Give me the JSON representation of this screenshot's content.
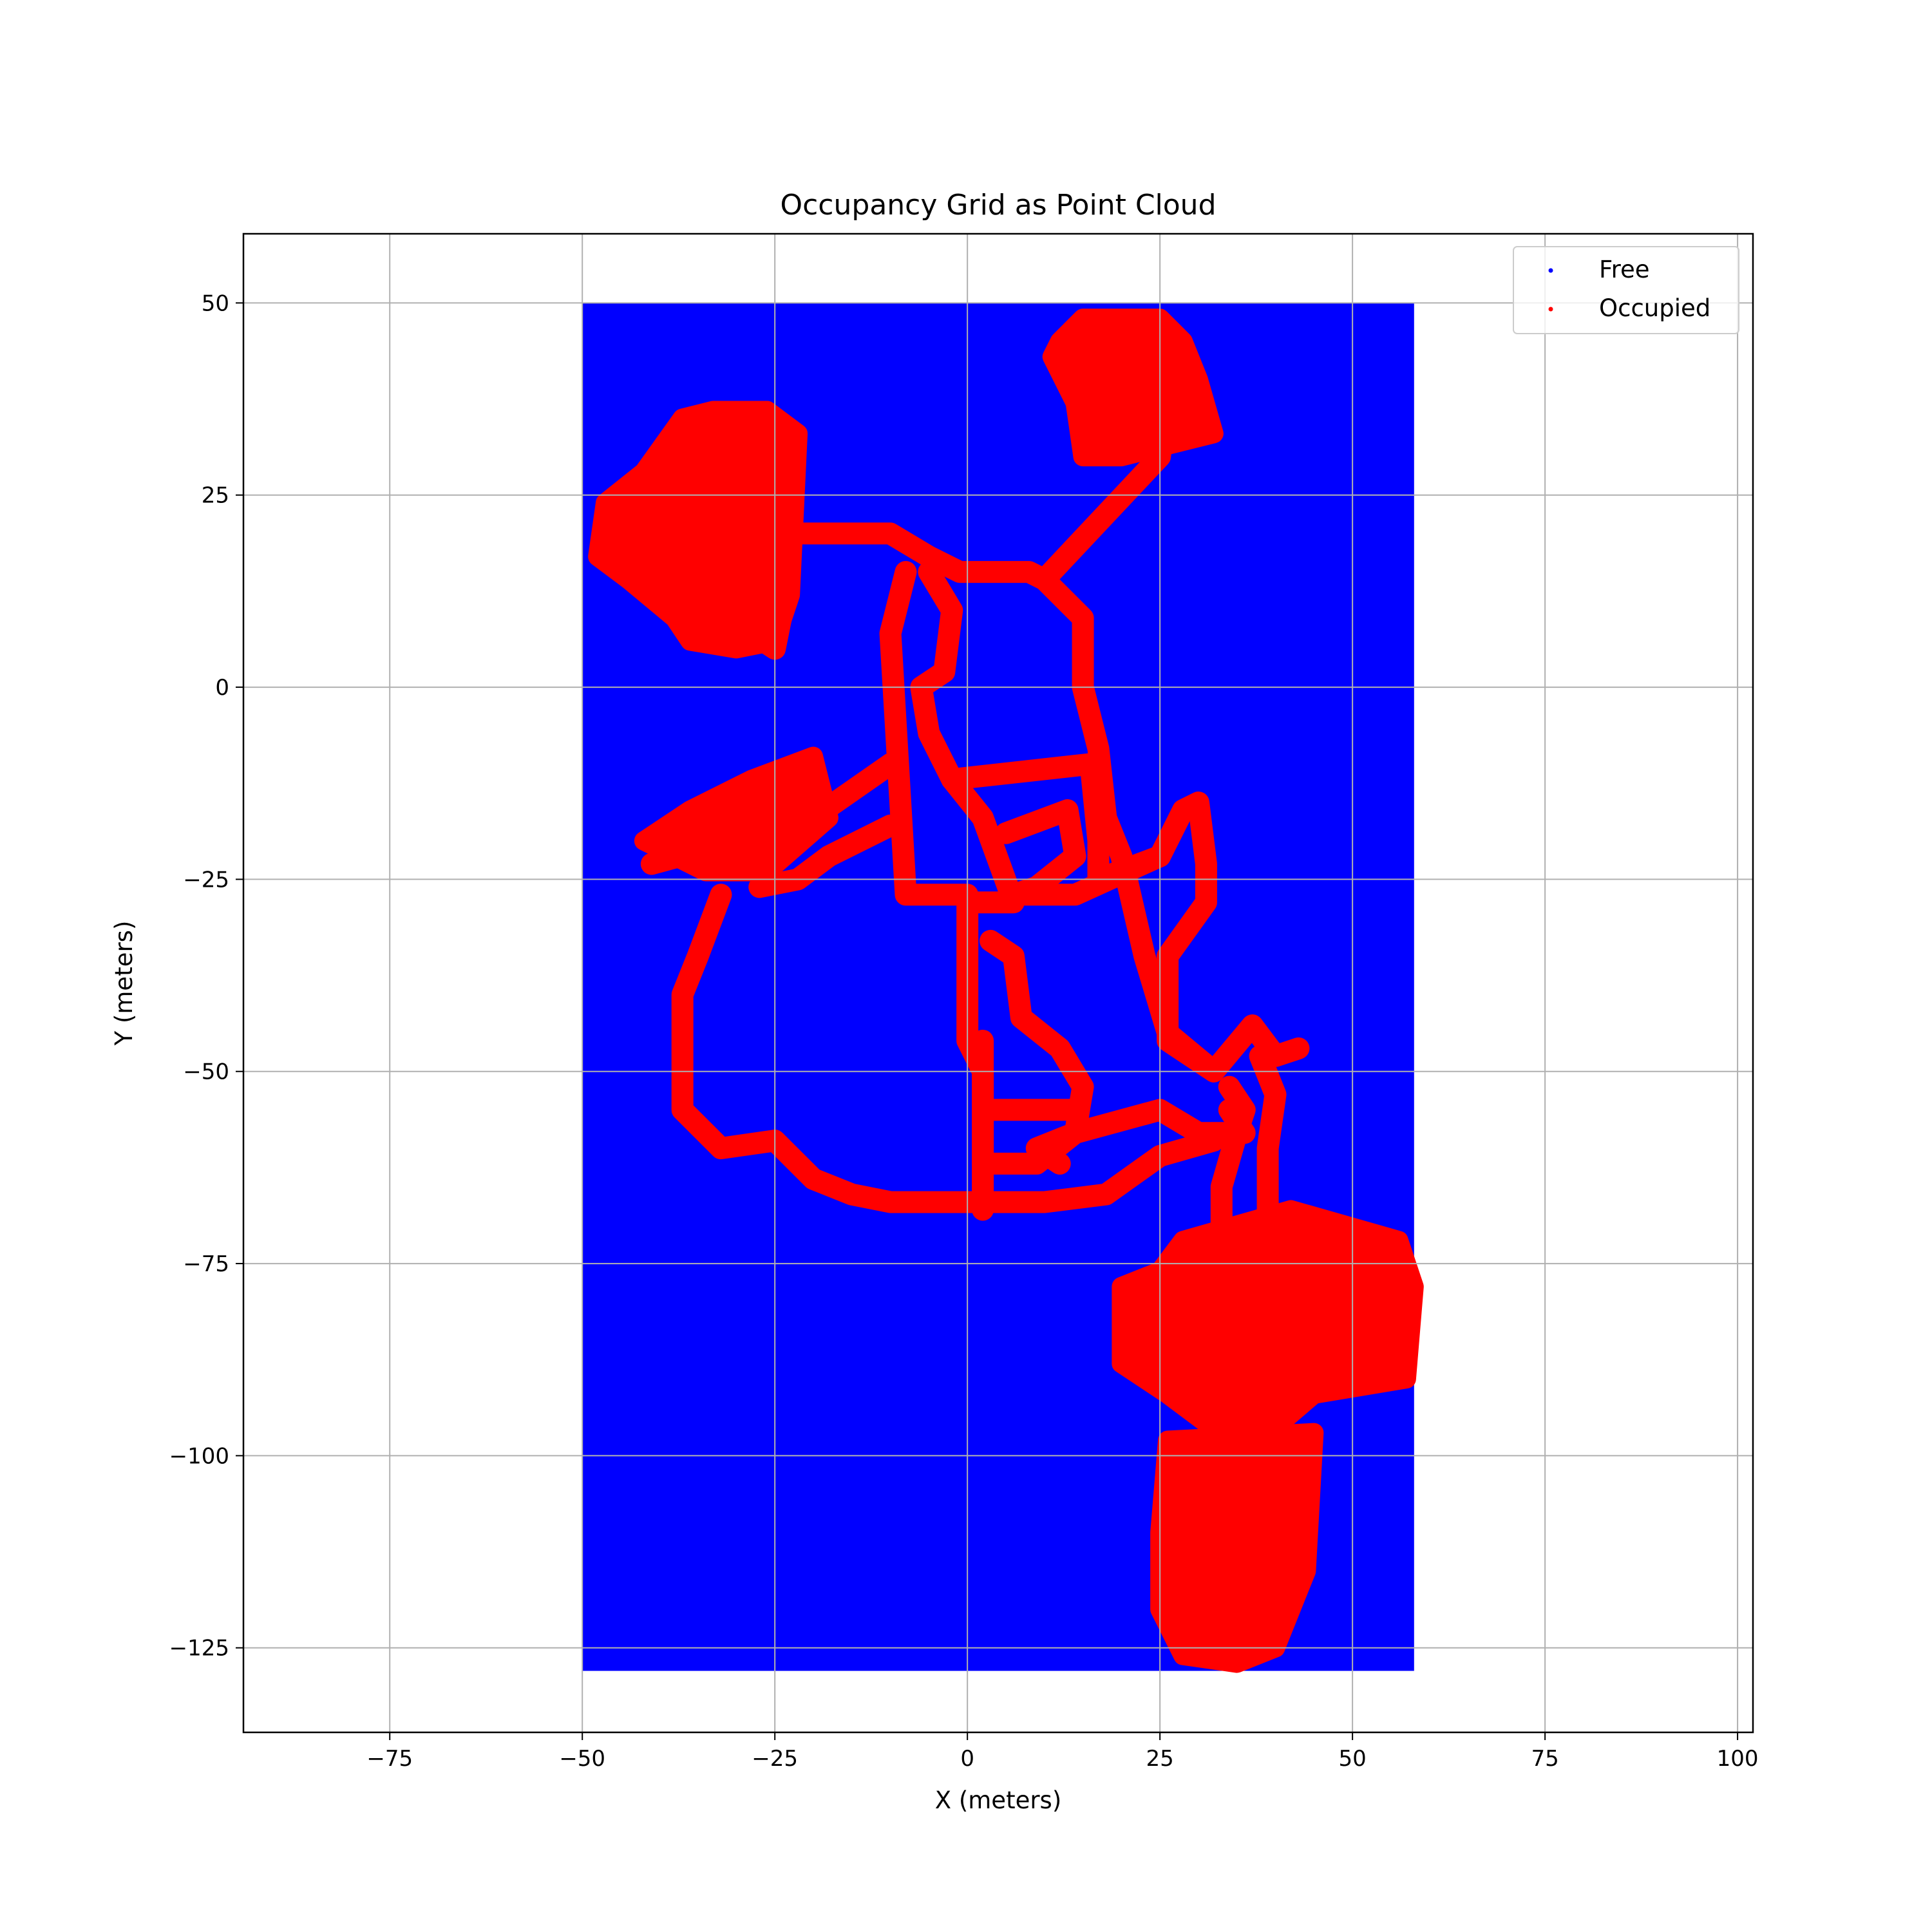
{
  "chart_data": {
    "type": "scatter",
    "title": "Occupancy Grid as Point Cloud",
    "xlabel": "X (meters)",
    "ylabel": "Y (meters)",
    "xlim": [
      -94,
      102
    ],
    "ylim": [
      -136,
      59
    ],
    "xticks": [
      -75,
      -50,
      -25,
      0,
      25,
      50,
      75,
      100
    ],
    "xtick_labels": [
      "−75",
      "−50",
      "−25",
      "0",
      "25",
      "50",
      "75",
      "100"
    ],
    "yticks": [
      50,
      25,
      0,
      -25,
      -50,
      -75,
      -100,
      -125
    ],
    "ytick_labels": [
      "50",
      "25",
      "0",
      "−25",
      "−50",
      "−75",
      "−100",
      "−125"
    ],
    "grid": true,
    "legend_position": "top-right",
    "series": [
      {
        "name": "Free",
        "color": "#0000ff",
        "region": {
          "x": [
            -50,
            58
          ],
          "y": [
            -128,
            50
          ]
        }
      },
      {
        "name": "Occupied",
        "color": "#ff0000",
        "paths": [
          [
            [
              -22,
              20
            ],
            [
              -10,
              20
            ],
            [
              -5,
              17
            ],
            [
              -1,
              15
            ],
            [
              8,
              15
            ],
            [
              10,
              14
            ],
            [
              15,
              9
            ],
            [
              15,
              0
            ],
            [
              17,
              -8
            ],
            [
              18,
              -17
            ],
            [
              20,
              -22
            ],
            [
              23,
              -35
            ],
            [
              26,
              -45
            ],
            [
              32,
              -50
            ]
          ],
          [
            [
              10,
              14
            ],
            [
              25,
              30
            ],
            [
              26,
              38
            ]
          ],
          [
            [
              -8,
              15
            ],
            [
              -10,
              7
            ],
            [
              -8,
              -27
            ],
            [
              0,
              -27
            ]
          ],
          [
            [
              -5,
              15
            ],
            [
              -2,
              10
            ],
            [
              -3,
              2
            ],
            [
              -6,
              0
            ],
            [
              -5,
              -6
            ],
            [
              -2,
              -12
            ],
            [
              2,
              -17
            ],
            [
              6,
              -28
            ],
            [
              0,
              -28
            ],
            [
              0,
              -46
            ],
            [
              2,
              -50
            ],
            [
              2,
              -68
            ]
          ],
          [
            [
              -2,
              -12
            ],
            [
              16,
              -10
            ],
            [
              17,
              -20
            ],
            [
              17,
              -25
            ],
            [
              25,
              -22
            ]
          ],
          [
            [
              5,
              -19
            ],
            [
              13,
              -16
            ],
            [
              14,
              -22
            ],
            [
              9,
              -26
            ],
            [
              6,
              -27
            ],
            [
              14,
              -27
            ],
            [
              25,
              -22
            ]
          ],
          [
            [
              3,
              -33
            ],
            [
              6,
              -35
            ],
            [
              7,
              -43
            ],
            [
              12,
              -47
            ],
            [
              15,
              -52
            ],
            [
              14,
              -58
            ],
            [
              9,
              -60
            ],
            [
              12,
              -62
            ]
          ],
          [
            [
              2,
              -46
            ],
            [
              2,
              -62
            ],
            [
              9,
              -62
            ],
            [
              14,
              -58
            ],
            [
              25,
              -55
            ],
            [
              30,
              -58
            ],
            [
              36,
              -58
            ],
            [
              34,
              -55
            ]
          ],
          [
            [
              2,
              -55
            ],
            [
              14,
              -55
            ]
          ],
          [
            [
              -10,
              -10
            ],
            [
              -20,
              -17
            ],
            [
              -30,
              -20
            ],
            [
              -41,
              -23
            ]
          ],
          [
            [
              -10,
              -18
            ],
            [
              -18,
              -22
            ],
            [
              -22,
              -25
            ],
            [
              -27,
              -26
            ]
          ],
          [
            [
              -32,
              -27
            ],
            [
              -35,
              -35
            ],
            [
              -37,
              -40
            ],
            [
              -37,
              -55
            ],
            [
              -32,
              -60
            ],
            [
              -25,
              -59
            ],
            [
              -20,
              -64
            ],
            [
              -15,
              -66
            ],
            [
              -10,
              -67
            ],
            [
              0,
              -67
            ],
            [
              10,
              -67
            ],
            [
              18,
              -66
            ],
            [
              25,
              -61
            ],
            [
              32,
              -59
            ]
          ],
          [
            [
              26,
              -35
            ],
            [
              26,
              -46
            ],
            [
              32,
              -50
            ],
            [
              37,
              -44
            ],
            [
              40,
              -48
            ],
            [
              43,
              -47
            ]
          ],
          [
            [
              34,
              -52
            ],
            [
              36,
              -55
            ],
            [
              35,
              -58
            ],
            [
              33,
              -65
            ],
            [
              33,
              -72
            ]
          ],
          [
            [
              38,
              -48
            ],
            [
              40,
              -53
            ],
            [
              39,
              -60
            ],
            [
              39,
              -68
            ],
            [
              40,
              -72
            ]
          ],
          [
            [
              25,
              -22
            ],
            [
              28,
              -16
            ],
            [
              30,
              -15
            ],
            [
              31,
              -23
            ],
            [
              31,
              -28
            ],
            [
              26,
              -35
            ]
          ],
          [
            [
              -37,
              17
            ],
            [
              -33,
              9
            ],
            [
              -28,
              7
            ],
            [
              -25,
              5
            ],
            [
              -24,
              10
            ],
            [
              -25,
              20
            ],
            [
              -24,
              32
            ]
          ]
        ],
        "blobs": [
          [
            [
              12,
              45
            ],
            [
              15,
              48
            ],
            [
              25,
              48
            ],
            [
              28,
              45
            ],
            [
              30,
              40
            ],
            [
              32,
              33
            ],
            [
              20,
              30
            ],
            [
              15,
              30
            ],
            [
              14,
              37
            ],
            [
              11,
              43
            ]
          ],
          [
            [
              28,
              -72
            ],
            [
              42,
              -68
            ],
            [
              56,
              -72
            ],
            [
              58,
              -78
            ],
            [
              57,
              -90
            ],
            [
              45,
              -92
            ],
            [
              38,
              -98
            ],
            [
              34,
              -98
            ],
            [
              26,
              -92
            ],
            [
              20,
              -88
            ],
            [
              20,
              -78
            ],
            [
              25,
              -76
            ]
          ],
          [
            [
              26,
              -98
            ],
            [
              45,
              -97
            ],
            [
              44,
              -115
            ],
            [
              40,
              -125
            ],
            [
              35,
              -127
            ],
            [
              28,
              -126
            ],
            [
              25,
              -120
            ],
            [
              25,
              -110
            ]
          ],
          [
            [
              -48,
              17
            ],
            [
              -44,
              14
            ],
            [
              -38,
              9
            ],
            [
              -36,
              6
            ],
            [
              -30,
              5
            ],
            [
              -25,
              6
            ],
            [
              -23,
              12
            ],
            [
              -22,
              33
            ],
            [
              -26,
              36
            ],
            [
              -33,
              36
            ],
            [
              -37,
              35
            ],
            [
              -42,
              28
            ],
            [
              -47,
              24
            ]
          ],
          [
            [
              -42,
              -20
            ],
            [
              -36,
              -16
            ],
            [
              -28,
              -12
            ],
            [
              -20,
              -9
            ],
            [
              -18,
              -17
            ],
            [
              -26,
              -24
            ],
            [
              -34,
              -24
            ]
          ]
        ]
      }
    ]
  }
}
